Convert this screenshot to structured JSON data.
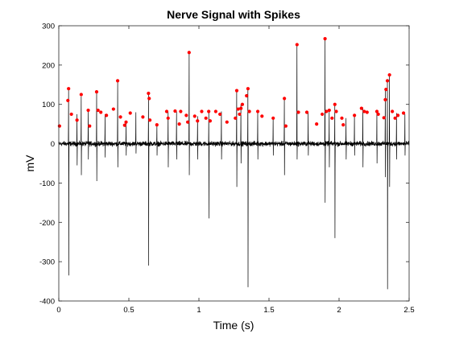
{
  "chart_data": {
    "type": "line",
    "title": "Nerve Signal with Spikes",
    "xlabel": "Time (s)",
    "ylabel": "mV",
    "xlim": [
      0,
      2.5
    ],
    "ylim": [
      -400,
      300
    ],
    "x_ticks": [
      0,
      0.5,
      1,
      1.5,
      2,
      2.5
    ],
    "x_tick_labels": [
      "0",
      "0.5",
      "1",
      "1.5",
      "2",
      "2.5"
    ],
    "y_ticks": [
      300,
      200,
      100,
      0,
      -100,
      -200,
      -300,
      -400
    ],
    "y_tick_labels": [
      "300",
      "200",
      "100",
      "0",
      "-100",
      "-200",
      "-300",
      "-400"
    ],
    "grid": false,
    "series": [
      {
        "role": "signal",
        "color": "#000000",
        "baseline_noise_mv": 6,
        "spikes": [
          {
            "t": 0.07,
            "peak": 140,
            "trough": -335
          },
          {
            "t": 0.13,
            "peak": 75,
            "trough": -55
          },
          {
            "t": 0.16,
            "peak": 120,
            "trough": -80
          },
          {
            "t": 0.21,
            "peak": 85,
            "trough": -40
          },
          {
            "t": 0.27,
            "peak": 130,
            "trough": -95
          },
          {
            "t": 0.33,
            "peak": 75,
            "trough": -35
          },
          {
            "t": 0.42,
            "peak": 158,
            "trough": -60
          },
          {
            "t": 0.48,
            "peak": 55,
            "trough": -30
          },
          {
            "t": 0.55,
            "peak": 80,
            "trough": -25
          },
          {
            "t": 0.64,
            "peak": 125,
            "trough": -310
          },
          {
            "t": 0.7,
            "peak": 45,
            "trough": -30
          },
          {
            "t": 0.78,
            "peak": 80,
            "trough": -60
          },
          {
            "t": 0.84,
            "peak": 82,
            "trough": -40
          },
          {
            "t": 0.93,
            "peak": 232,
            "trough": -80
          },
          {
            "t": 0.99,
            "peak": 70,
            "trough": -40
          },
          {
            "t": 1.07,
            "peak": 85,
            "trough": -190
          },
          {
            "t": 1.16,
            "peak": 82,
            "trough": -40
          },
          {
            "t": 1.27,
            "peak": 135,
            "trough": -110
          },
          {
            "t": 1.3,
            "peak": 100,
            "trough": -50
          },
          {
            "t": 1.35,
            "peak": 138,
            "trough": -365
          },
          {
            "t": 1.42,
            "peak": 80,
            "trough": -40
          },
          {
            "t": 1.53,
            "peak": 65,
            "trough": -30
          },
          {
            "t": 1.61,
            "peak": 115,
            "trough": -80
          },
          {
            "t": 1.7,
            "peak": 250,
            "trough": -40
          },
          {
            "t": 1.78,
            "peak": 80,
            "trough": -30
          },
          {
            "t": 1.9,
            "peak": 266,
            "trough": -150
          },
          {
            "t": 1.93,
            "peak": 85,
            "trough": -60
          },
          {
            "t": 1.97,
            "peak": 100,
            "trough": -240
          },
          {
            "t": 2.05,
            "peak": 65,
            "trough": -40
          },
          {
            "t": 2.11,
            "peak": 75,
            "trough": -30
          },
          {
            "t": 2.17,
            "peak": 92,
            "trough": -60
          },
          {
            "t": 2.27,
            "peak": 80,
            "trough": -50
          },
          {
            "t": 2.33,
            "peak": 138,
            "trough": -85
          },
          {
            "t": 2.345,
            "peak": 160,
            "trough": -370
          },
          {
            "t": 2.36,
            "peak": 175,
            "trough": -110
          },
          {
            "t": 2.41,
            "peak": 78,
            "trough": -40
          },
          {
            "t": 2.47,
            "peak": 75,
            "trough": -30
          }
        ]
      },
      {
        "role": "detected_peaks",
        "color": "#ff0000",
        "marker": "dot",
        "points": [
          {
            "x": 0.005,
            "y": 45
          },
          {
            "x": 0.065,
            "y": 110
          },
          {
            "x": 0.07,
            "y": 140
          },
          {
            "x": 0.09,
            "y": 75
          },
          {
            "x": 0.13,
            "y": 60
          },
          {
            "x": 0.16,
            "y": 125
          },
          {
            "x": 0.21,
            "y": 85
          },
          {
            "x": 0.22,
            "y": 45
          },
          {
            "x": 0.27,
            "y": 132
          },
          {
            "x": 0.28,
            "y": 85
          },
          {
            "x": 0.3,
            "y": 80
          },
          {
            "x": 0.34,
            "y": 72
          },
          {
            "x": 0.39,
            "y": 88
          },
          {
            "x": 0.42,
            "y": 160
          },
          {
            "x": 0.44,
            "y": 68
          },
          {
            "x": 0.47,
            "y": 47
          },
          {
            "x": 0.48,
            "y": 55
          },
          {
            "x": 0.51,
            "y": 78
          },
          {
            "x": 0.6,
            "y": 68
          },
          {
            "x": 0.64,
            "y": 128
          },
          {
            "x": 0.645,
            "y": 115
          },
          {
            "x": 0.65,
            "y": 60
          },
          {
            "x": 0.7,
            "y": 48
          },
          {
            "x": 0.77,
            "y": 82
          },
          {
            "x": 0.78,
            "y": 65
          },
          {
            "x": 0.83,
            "y": 83
          },
          {
            "x": 0.86,
            "y": 50
          },
          {
            "x": 0.87,
            "y": 82
          },
          {
            "x": 0.91,
            "y": 72
          },
          {
            "x": 0.92,
            "y": 55
          },
          {
            "x": 0.93,
            "y": 232
          },
          {
            "x": 0.97,
            "y": 70
          },
          {
            "x": 0.99,
            "y": 58
          },
          {
            "x": 1.02,
            "y": 82
          },
          {
            "x": 1.05,
            "y": 65
          },
          {
            "x": 1.07,
            "y": 82
          },
          {
            "x": 1.08,
            "y": 58
          },
          {
            "x": 1.12,
            "y": 82
          },
          {
            "x": 1.15,
            "y": 75
          },
          {
            "x": 1.2,
            "y": 55
          },
          {
            "x": 1.26,
            "y": 65
          },
          {
            "x": 1.27,
            "y": 135
          },
          {
            "x": 1.28,
            "y": 88
          },
          {
            "x": 1.29,
            "y": 75
          },
          {
            "x": 1.3,
            "y": 90
          },
          {
            "x": 1.31,
            "y": 100
          },
          {
            "x": 1.34,
            "y": 122
          },
          {
            "x": 1.35,
            "y": 140
          },
          {
            "x": 1.36,
            "y": 82
          },
          {
            "x": 1.42,
            "y": 82
          },
          {
            "x": 1.45,
            "y": 70
          },
          {
            "x": 1.53,
            "y": 65
          },
          {
            "x": 1.61,
            "y": 115
          },
          {
            "x": 1.62,
            "y": 45
          },
          {
            "x": 1.7,
            "y": 252
          },
          {
            "x": 1.71,
            "y": 80
          },
          {
            "x": 1.77,
            "y": 80
          },
          {
            "x": 1.84,
            "y": 50
          },
          {
            "x": 1.88,
            "y": 75
          },
          {
            "x": 1.9,
            "y": 267
          },
          {
            "x": 1.91,
            "y": 82
          },
          {
            "x": 1.93,
            "y": 85
          },
          {
            "x": 1.95,
            "y": 65
          },
          {
            "x": 1.97,
            "y": 100
          },
          {
            "x": 1.98,
            "y": 82
          },
          {
            "x": 2.02,
            "y": 65
          },
          {
            "x": 2.03,
            "y": 48
          },
          {
            "x": 2.11,
            "y": 72
          },
          {
            "x": 2.16,
            "y": 90
          },
          {
            "x": 2.18,
            "y": 82
          },
          {
            "x": 2.2,
            "y": 80
          },
          {
            "x": 2.27,
            "y": 82
          },
          {
            "x": 2.28,
            "y": 75
          },
          {
            "x": 2.32,
            "y": 66
          },
          {
            "x": 2.33,
            "y": 112
          },
          {
            "x": 2.335,
            "y": 138
          },
          {
            "x": 2.345,
            "y": 160
          },
          {
            "x": 2.36,
            "y": 175
          },
          {
            "x": 2.38,
            "y": 82
          },
          {
            "x": 2.4,
            "y": 65
          },
          {
            "x": 2.42,
            "y": 72
          },
          {
            "x": 2.46,
            "y": 78
          }
        ]
      }
    ]
  }
}
